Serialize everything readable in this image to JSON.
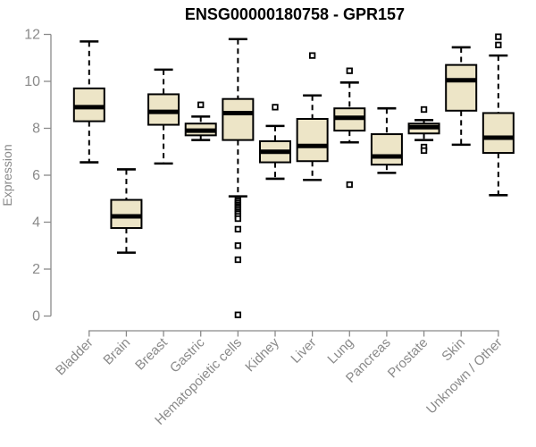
{
  "chart_data": {
    "type": "boxplot",
    "title": "ENSG00000180758 - GPR157",
    "ylabel": "Expression",
    "xlabel": "",
    "ylim": [
      0,
      12
    ],
    "yticks": [
      0,
      2,
      4,
      6,
      8,
      10,
      12
    ],
    "grid": false,
    "legend": "none",
    "box_fill": "#EDE5C7",
    "box_stroke": "#000000",
    "axis_color": "#8a8a8a",
    "categories": [
      "Bladder",
      "Brain",
      "Breast",
      "Gastric",
      "Hematopoietic cells",
      "Kidney",
      "Liver",
      "Lung",
      "Pancreas",
      "Prostate",
      "Skin",
      "Unknown / Other"
    ],
    "series": [
      {
        "category": "Bladder",
        "whisker_low": 6.55,
        "q1": 8.3,
        "median": 8.9,
        "q3": 9.7,
        "whisker_high": 11.7,
        "outliers": []
      },
      {
        "category": "Brain",
        "whisker_low": 2.7,
        "q1": 3.75,
        "median": 4.25,
        "q3": 4.95,
        "whisker_high": 6.25,
        "outliers": []
      },
      {
        "category": "Breast",
        "whisker_low": 6.5,
        "q1": 8.15,
        "median": 8.7,
        "q3": 9.45,
        "whisker_high": 10.5,
        "outliers": []
      },
      {
        "category": "Gastric",
        "whisker_low": 7.5,
        "q1": 7.7,
        "median": 7.9,
        "q3": 8.2,
        "whisker_high": 8.5,
        "outliers": [
          9.0
        ]
      },
      {
        "category": "Hematopoietic cells",
        "whisker_low": 5.1,
        "q1": 7.5,
        "median": 8.65,
        "q3": 9.25,
        "whisker_high": 11.8,
        "outliers": [
          4.95,
          4.88,
          4.8,
          4.72,
          4.65,
          4.58,
          4.5,
          4.42,
          4.35,
          4.25,
          4.15,
          3.7,
          3.0,
          2.4,
          0.05
        ]
      },
      {
        "category": "Kidney",
        "whisker_low": 5.85,
        "q1": 6.55,
        "median": 7.0,
        "q3": 7.45,
        "whisker_high": 8.1,
        "outliers": [
          8.9
        ]
      },
      {
        "category": "Liver",
        "whisker_low": 5.8,
        "q1": 6.6,
        "median": 7.25,
        "q3": 8.4,
        "whisker_high": 9.4,
        "outliers": [
          11.1
        ]
      },
      {
        "category": "Lung",
        "whisker_low": 7.4,
        "q1": 7.9,
        "median": 8.45,
        "q3": 8.85,
        "whisker_high": 9.95,
        "outliers": [
          10.45,
          5.6
        ]
      },
      {
        "category": "Pancreas",
        "whisker_low": 6.1,
        "q1": 6.45,
        "median": 6.8,
        "q3": 7.75,
        "whisker_high": 8.85,
        "outliers": []
      },
      {
        "category": "Prostate",
        "whisker_low": 7.5,
        "q1": 7.78,
        "median": 8.05,
        "q3": 8.2,
        "whisker_high": 8.35,
        "outliers": [
          8.8,
          7.2,
          7.05
        ]
      },
      {
        "category": "Skin",
        "whisker_low": 7.3,
        "q1": 8.75,
        "median": 10.05,
        "q3": 10.7,
        "whisker_high": 11.45,
        "outliers": []
      },
      {
        "category": "Unknown / Other",
        "whisker_low": 5.15,
        "q1": 6.95,
        "median": 7.6,
        "q3": 8.65,
        "whisker_high": 11.1,
        "outliers": [
          11.9,
          11.55
        ]
      }
    ]
  }
}
